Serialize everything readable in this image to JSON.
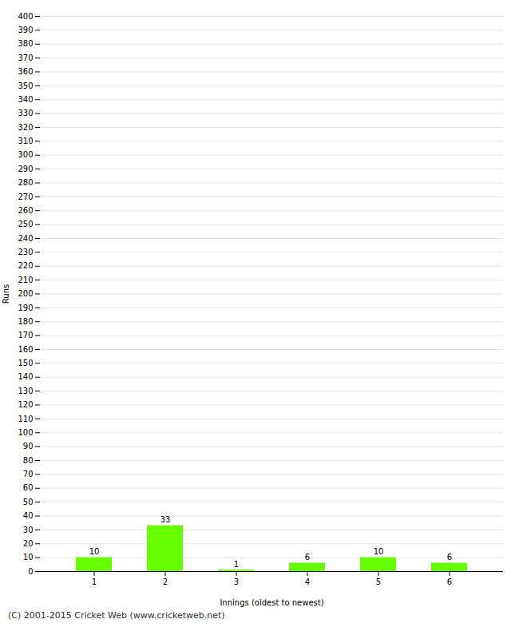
{
  "chart_data": {
    "type": "bar",
    "categories": [
      "1",
      "2",
      "3",
      "4",
      "5",
      "6"
    ],
    "values": [
      10,
      33,
      1,
      6,
      10,
      6
    ],
    "color": "#66ff00",
    "xlabel": "Innings (oldest to newest)",
    "ylabel": "Runs",
    "caption": "(C) 2001-2015 Cricket Web (www.cricketweb.net)",
    "ylim": [
      0,
      400
    ],
    "yticks": [
      0,
      10,
      20,
      30,
      40,
      50,
      60,
      70,
      80,
      90,
      100,
      110,
      120,
      130,
      140,
      150,
      160,
      170,
      180,
      190,
      200,
      210,
      220,
      230,
      240,
      250,
      260,
      270,
      280,
      290,
      300,
      310,
      320,
      330,
      340,
      350,
      360,
      370,
      380,
      390,
      400
    ],
    "grid": true,
    "data_labels": true
  }
}
